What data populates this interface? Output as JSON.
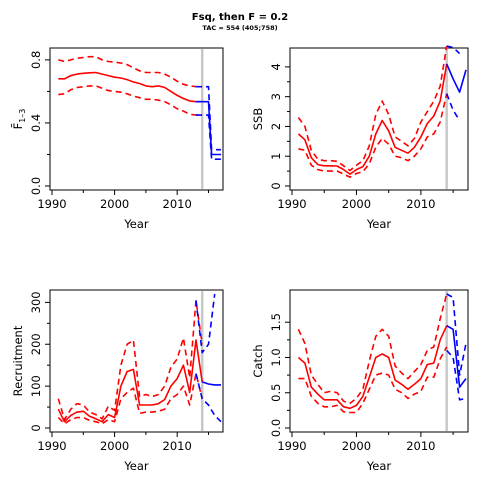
{
  "figure": {
    "title": "Fsq, then F = 0.2",
    "subtitle": "TAC = 554 (405;758)"
  },
  "colors": {
    "history": "#ff0000",
    "projection": "#0000ff",
    "divider": "#c8c8c8",
    "axis": "#000000"
  },
  "chart_data": [
    {
      "id": "fbar",
      "type": "line",
      "xlabel": "Year",
      "ylabel": "F̄",
      "ylabel_sub": "1–3",
      "xlim": [
        1990,
        2017
      ],
      "ylim": [
        0,
        0.85
      ],
      "xticks": [
        1990,
        2000,
        2010
      ],
      "yticks": [
        0.0,
        0.4,
        0.8
      ],
      "ytick_labels": [
        "0.0",
        "0.4",
        "0.8"
      ],
      "divider_x": 2014,
      "series": [
        {
          "style": "history-median",
          "x": [
            1991,
            1992,
            1993,
            1994,
            1995,
            1996,
            1997,
            1998,
            1999,
            2000,
            2001,
            2002,
            2003,
            2004,
            2005,
            2006,
            2007,
            2008,
            2009,
            2010,
            2011,
            2012,
            2013,
            2014
          ],
          "y": [
            0.68,
            0.68,
            0.7,
            0.71,
            0.715,
            0.718,
            0.72,
            0.71,
            0.7,
            0.69,
            0.685,
            0.675,
            0.66,
            0.65,
            0.635,
            0.63,
            0.635,
            0.625,
            0.6,
            0.575,
            0.555,
            0.54,
            0.535,
            0.535
          ]
        },
        {
          "style": "history-upper",
          "x": [
            1991,
            1992,
            1993,
            1994,
            1995,
            1996,
            1997,
            1998,
            1999,
            2000,
            2001,
            2002,
            2003,
            2004,
            2005,
            2006,
            2007,
            2008,
            2009,
            2010,
            2011,
            2012,
            2013,
            2014
          ],
          "y": [
            0.8,
            0.79,
            0.8,
            0.81,
            0.815,
            0.82,
            0.82,
            0.8,
            0.79,
            0.785,
            0.78,
            0.77,
            0.75,
            0.73,
            0.72,
            0.72,
            0.72,
            0.71,
            0.69,
            0.665,
            0.645,
            0.635,
            0.63,
            0.63
          ]
        },
        {
          "style": "history-lower",
          "x": [
            1991,
            1992,
            1993,
            1994,
            1995,
            1996,
            1997,
            1998,
            1999,
            2000,
            2001,
            2002,
            2003,
            2004,
            2005,
            2006,
            2007,
            2008,
            2009,
            2010,
            2011,
            2012,
            2013,
            2014
          ],
          "y": [
            0.58,
            0.585,
            0.61,
            0.625,
            0.63,
            0.635,
            0.635,
            0.62,
            0.605,
            0.6,
            0.595,
            0.585,
            0.57,
            0.56,
            0.55,
            0.55,
            0.545,
            0.535,
            0.515,
            0.49,
            0.475,
            0.455,
            0.45,
            0.45
          ]
        },
        {
          "style": "projection-median",
          "x": [
            2013,
            2014,
            2015,
            2015.5,
            2016,
            2017
          ],
          "y": [
            0.535,
            0.535,
            0.535,
            0.2,
            0.2,
            0.2
          ]
        },
        {
          "style": "projection-upper",
          "x": [
            2013,
            2014,
            2015,
            2015.5,
            2016,
            2017
          ],
          "y": [
            0.63,
            0.63,
            0.63,
            0.23,
            0.23,
            0.23
          ]
        },
        {
          "style": "projection-lower",
          "x": [
            2013,
            2014,
            2015,
            2015.5,
            2016,
            2017
          ],
          "y": [
            0.45,
            0.45,
            0.45,
            0.17,
            0.17,
            0.17
          ]
        }
      ]
    },
    {
      "id": "ssb",
      "type": "line",
      "xlabel": "Year",
      "ylabel": "SSB",
      "xlim": [
        1990,
        2017
      ],
      "ylim": [
        0,
        4.5
      ],
      "xticks": [
        1990,
        2000,
        2010
      ],
      "yticks": [
        0,
        1,
        2,
        3,
        4
      ],
      "ytick_labels": [
        "0",
        "1",
        "2",
        "3",
        "4"
      ],
      "divider_x": 2014,
      "series": [
        {
          "style": "history-median",
          "x": [
            1991,
            1992,
            1993,
            1994,
            1995,
            1996,
            1997,
            1998,
            1999,
            2000,
            2001,
            2002,
            2003,
            2004,
            2005,
            2006,
            2007,
            2008,
            2009,
            2010,
            2011,
            2012,
            2013,
            2014
          ],
          "y": [
            1.75,
            1.55,
            0.95,
            0.72,
            0.68,
            0.68,
            0.67,
            0.55,
            0.4,
            0.55,
            0.65,
            1.0,
            1.75,
            2.2,
            1.85,
            1.3,
            1.2,
            1.1,
            1.3,
            1.65,
            2.1,
            2.35,
            2.85,
            4.1
          ]
        },
        {
          "style": "history-upper",
          "x": [
            1991,
            1992,
            1993,
            1994,
            1995,
            1996,
            1997,
            1998,
            1999,
            2000,
            2001,
            2002,
            2003,
            2004,
            2005,
            2006,
            2007,
            2008,
            2009,
            2010,
            2011,
            2012,
            2013,
            2014
          ],
          "y": [
            2.3,
            2.0,
            1.2,
            0.9,
            0.85,
            0.85,
            0.83,
            0.68,
            0.52,
            0.7,
            0.85,
            1.35,
            2.4,
            2.85,
            2.4,
            1.65,
            1.5,
            1.35,
            1.6,
            2.15,
            2.5,
            2.85,
            3.35,
            4.7
          ]
        },
        {
          "style": "history-lower",
          "x": [
            1991,
            1992,
            1993,
            1994,
            1995,
            1996,
            1997,
            1998,
            1999,
            2000,
            2001,
            2002,
            2003,
            2004,
            2005,
            2006,
            2007,
            2008,
            2009,
            2010,
            2011,
            2012,
            2013,
            2014
          ],
          "y": [
            1.25,
            1.2,
            0.7,
            0.55,
            0.5,
            0.5,
            0.5,
            0.4,
            0.3,
            0.42,
            0.48,
            0.75,
            1.3,
            1.6,
            1.4,
            1.0,
            0.95,
            0.85,
            1.0,
            1.25,
            1.65,
            1.75,
            2.15,
            3.1
          ]
        },
        {
          "style": "projection-median",
          "x": [
            2014,
            2015,
            2016,
            2017
          ],
          "y": [
            4.1,
            3.6,
            3.15,
            3.9
          ]
        },
        {
          "style": "projection-upper",
          "x": [
            2014,
            2015,
            2016
          ],
          "y": [
            4.7,
            4.65,
            4.45
          ]
        },
        {
          "style": "projection-lower",
          "x": [
            2014,
            2015,
            2016
          ],
          "y": [
            3.1,
            2.55,
            2.2
          ]
        }
      ]
    },
    {
      "id": "recruitment",
      "type": "line",
      "xlabel": "Year",
      "ylabel": "Recruitment",
      "xlim": [
        1990,
        2017
      ],
      "ylim": [
        0,
        320
      ],
      "xticks": [
        1990,
        2000,
        2010
      ],
      "yticks": [
        0,
        100,
        200,
        300
      ],
      "ytick_labels": [
        "0",
        "100",
        "200",
        "300"
      ],
      "divider_x": 2014,
      "series": [
        {
          "style": "history-median",
          "x": [
            1991,
            1992,
            1993,
            1994,
            1995,
            1996,
            1997,
            1998,
            1999,
            2000,
            2001,
            2002,
            2003,
            2004,
            2005,
            2006,
            2007,
            2008,
            2009,
            2010,
            2011,
            2012,
            2013,
            2014
          ],
          "y": [
            45,
            15,
            30,
            38,
            40,
            28,
            22,
            15,
            32,
            25,
            100,
            135,
            140,
            55,
            55,
            55,
            58,
            68,
            100,
            118,
            150,
            85,
            210,
            110
          ]
        },
        {
          "style": "history-upper",
          "x": [
            1991,
            1992,
            1993,
            1994,
            1995,
            1996,
            1997,
            1998,
            1999,
            2000,
            2001,
            2002,
            2003,
            2004,
            2005,
            2006,
            2007,
            2008,
            2009,
            2010,
            2011,
            2012,
            2013,
            2014
          ],
          "y": [
            70,
            20,
            45,
            58,
            55,
            38,
            32,
            22,
            52,
            42,
            150,
            200,
            210,
            75,
            80,
            75,
            80,
            100,
            145,
            165,
            215,
            120,
            305,
            200
          ]
        },
        {
          "style": "history-lower",
          "x": [
            1991,
            1992,
            1993,
            1994,
            1995,
            1996,
            1997,
            1998,
            1999,
            2000,
            2001,
            2002,
            2003,
            2004,
            2005,
            2006,
            2007,
            2008,
            2009,
            2010,
            2011,
            2012,
            2013,
            2014
          ],
          "y": [
            25,
            10,
            20,
            25,
            25,
            18,
            15,
            10,
            20,
            15,
            70,
            85,
            95,
            35,
            38,
            38,
            40,
            45,
            70,
            80,
            100,
            55,
            130,
            70
          ]
        },
        {
          "style": "projection-median",
          "x": [
            2014,
            2015,
            2016,
            2017
          ],
          "y": [
            110,
            105,
            103,
            103
          ]
        },
        {
          "style": "projection-upper",
          "x": [
            2013,
            2014,
            2015,
            2016
          ],
          "y": [
            305,
            180,
            200,
            320
          ]
        },
        {
          "style": "projection-lower",
          "x": [
            2013,
            2014,
            2015,
            2016,
            2017
          ],
          "y": [
            130,
            70,
            55,
            30,
            15
          ]
        }
      ]
    },
    {
      "id": "catch",
      "type": "line",
      "xlabel": "Year",
      "ylabel": "Catch",
      "xlim": [
        1990,
        2017
      ],
      "ylim": [
        0,
        1.9
      ],
      "xticks": [
        1990,
        2000,
        2010
      ],
      "yticks": [
        0.0,
        0.5,
        1.0,
        1.5
      ],
      "ytick_labels": [
        "0.0",
        "0.5",
        "1.0",
        "1.5"
      ],
      "divider_x": 2014,
      "series": [
        {
          "style": "history-median",
          "x": [
            1991,
            1992,
            1993,
            1994,
            1995,
            1996,
            1997,
            1998,
            1999,
            2000,
            2001,
            2002,
            2003,
            2004,
            2005,
            2006,
            2007,
            2008,
            2009,
            2010,
            2011,
            2012,
            2013,
            2014
          ],
          "y": [
            1.0,
            0.92,
            0.58,
            0.48,
            0.4,
            0.4,
            0.4,
            0.3,
            0.28,
            0.32,
            0.45,
            0.72,
            1.0,
            1.05,
            1.0,
            0.68,
            0.62,
            0.55,
            0.62,
            0.7,
            0.9,
            0.92,
            1.25,
            1.45
          ]
        },
        {
          "style": "history-upper",
          "x": [
            1991,
            1992,
            1993,
            1994,
            1995,
            1996,
            1997,
            1998,
            1999,
            2000,
            2001,
            2002,
            2003,
            2004,
            2005,
            2006,
            2007,
            2008,
            2009,
            2010,
            2011,
            2012,
            2013,
            2014
          ],
          "y": [
            1.4,
            1.2,
            0.75,
            0.62,
            0.5,
            0.52,
            0.5,
            0.38,
            0.35,
            0.42,
            0.55,
            0.95,
            1.3,
            1.4,
            1.3,
            0.88,
            0.78,
            0.7,
            0.8,
            0.9,
            1.1,
            1.15,
            1.55,
            1.9
          ]
        },
        {
          "style": "history-lower",
          "x": [
            1991,
            1992,
            1993,
            1994,
            1995,
            1996,
            1997,
            1998,
            1999,
            2000,
            2001,
            2002,
            2003,
            2004,
            2005,
            2006,
            2007,
            2008,
            2009,
            2010,
            2011,
            2012,
            2013,
            2014
          ],
          "y": [
            0.7,
            0.7,
            0.45,
            0.35,
            0.3,
            0.3,
            0.32,
            0.23,
            0.22,
            0.22,
            0.35,
            0.55,
            0.75,
            0.78,
            0.75,
            0.55,
            0.5,
            0.42,
            0.48,
            0.52,
            0.72,
            0.72,
            0.98,
            1.15
          ]
        },
        {
          "style": "projection-median",
          "x": [
            2014,
            2015,
            2016,
            2017
          ],
          "y": [
            1.45,
            1.4,
            0.58,
            0.7
          ]
        },
        {
          "style": "projection-upper",
          "x": [
            2014,
            2015,
            2016,
            2017
          ],
          "y": [
            1.9,
            1.85,
            0.75,
            1.2
          ]
        },
        {
          "style": "projection-lower",
          "x": [
            2014,
            2015,
            2016,
            2017
          ],
          "y": [
            1.1,
            1.0,
            0.4,
            0.42
          ]
        }
      ]
    }
  ]
}
